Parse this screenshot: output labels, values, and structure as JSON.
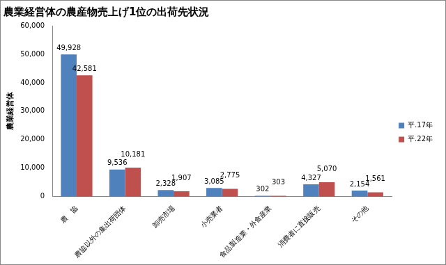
{
  "chart_data": {
    "type": "bar",
    "title": "農業経営体の農産物売上げ1位の出荷先状況",
    "y_label": "農業経営体",
    "categories": [
      "農　協",
      "農協以外の集出荷団体",
      "卸売市場",
      "小売業者",
      "食品製造業・外食産業",
      "消費者に直接販売",
      "その他"
    ],
    "series": [
      {
        "name": "平.17年",
        "color": "#4f81bd",
        "values": [
          49928,
          9536,
          2328,
          3085,
          302,
          4327,
          2154
        ],
        "value_labels": [
          "49,928",
          "9,536",
          "2,328",
          "3,085",
          "302",
          "4,327",
          "2,154"
        ]
      },
      {
        "name": "平.22年",
        "color": "#c0504d",
        "values": [
          42581,
          10181,
          1907,
          2775,
          303,
          5070,
          1561
        ],
        "value_labels": [
          "42,581",
          "10,181",
          "1,907",
          "2,775",
          "303",
          "5,070",
          "1,561"
        ]
      }
    ],
    "ylim": [
      0,
      60000
    ],
    "yticks": [
      0,
      {
        "value": 10000,
        "label": "10,000"
      },
      {
        "value": 20000,
        "label": "20,000"
      },
      {
        "value": 30000,
        "label": "30,000"
      },
      {
        "value": 40000,
        "label": "40,000"
      },
      {
        "value": 50000,
        "label": "50,000"
      },
      {
        "value": 60000,
        "label": "60,000"
      }
    ],
    "grid": false,
    "legend": "right",
    "data_labels": true
  }
}
